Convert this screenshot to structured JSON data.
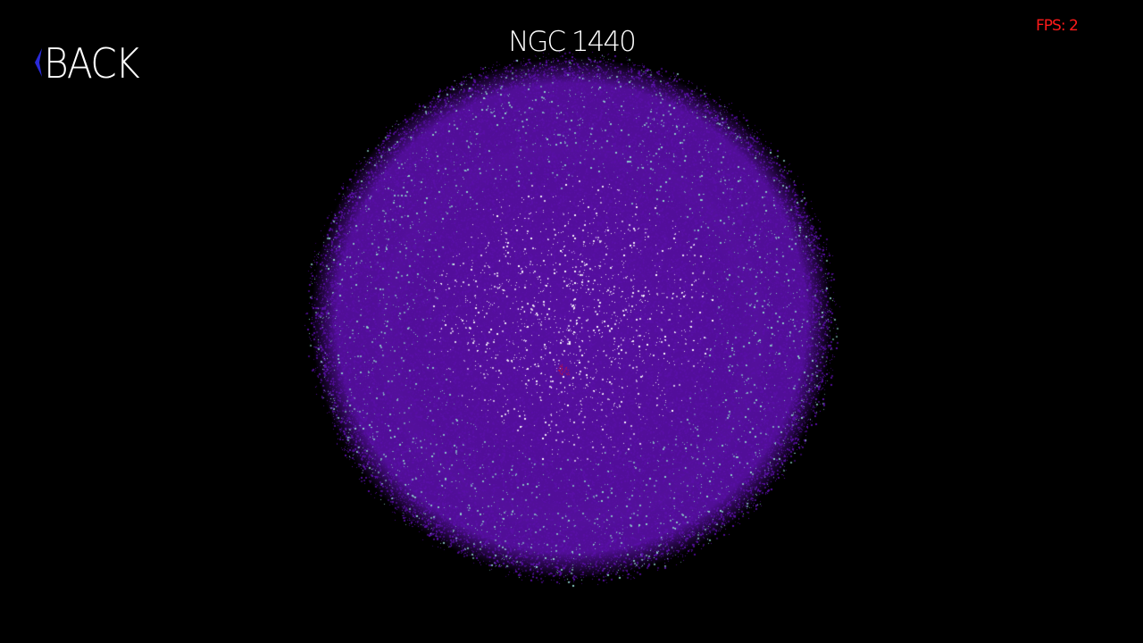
{
  "header": {
    "back_label": "BACK",
    "title": "NGC 1440",
    "fps": "FPS: 2"
  },
  "icons": {
    "back": "chevron-left-icon"
  },
  "colors": {
    "background": "#000000",
    "title": "#ffffff",
    "fps": "#ff1a1a",
    "back_chevron": "#2a2ad8",
    "star_primary": "#5a10a8",
    "star_core": "#ffffff",
    "star_teal": "#8fd3cc",
    "center_marker": "#d01030"
  }
}
